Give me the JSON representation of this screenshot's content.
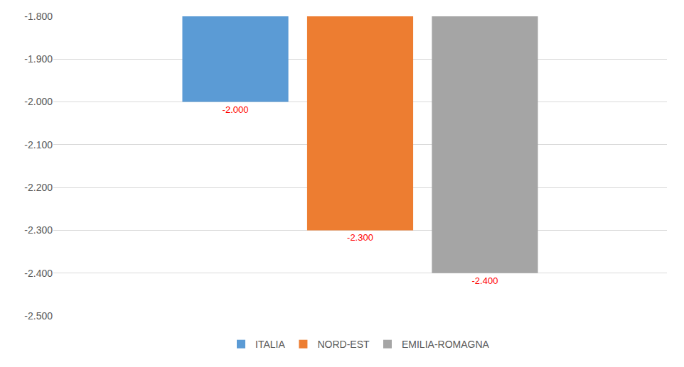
{
  "chart_data": {
    "type": "bar",
    "categories": [
      null
    ],
    "series": [
      {
        "name": "ITALIA",
        "color": "#5b9bd5",
        "values": [
          -2.0
        ],
        "value_labels": [
          "-2.000"
        ]
      },
      {
        "name": "NORD-EST",
        "color": "#ed7d31",
        "values": [
          -2.3
        ],
        "value_labels": [
          "-2.300"
        ]
      },
      {
        "name": "EMILIA-ROMAGNA",
        "color": "#a5a5a5",
        "values": [
          -2.4
        ],
        "value_labels": [
          "-2.400"
        ]
      }
    ],
    "ylim": [
      -2.5,
      -1.8
    ],
    "yticks": [
      {
        "value": -2.5,
        "label": "-2.500"
      },
      {
        "value": -2.4,
        "label": "-2.400"
      },
      {
        "value": -2.3,
        "label": "-2.300"
      },
      {
        "value": -2.2,
        "label": "-2.200"
      },
      {
        "value": -2.1,
        "label": "-2.100"
      },
      {
        "value": -2.0,
        "label": "-2.000"
      },
      {
        "value": -1.9,
        "label": "-1.900"
      },
      {
        "value": -1.8,
        "label": "-1.800"
      }
    ],
    "grid": true,
    "legend": "bottom",
    "data_labels": true,
    "tick_labels": "y"
  }
}
